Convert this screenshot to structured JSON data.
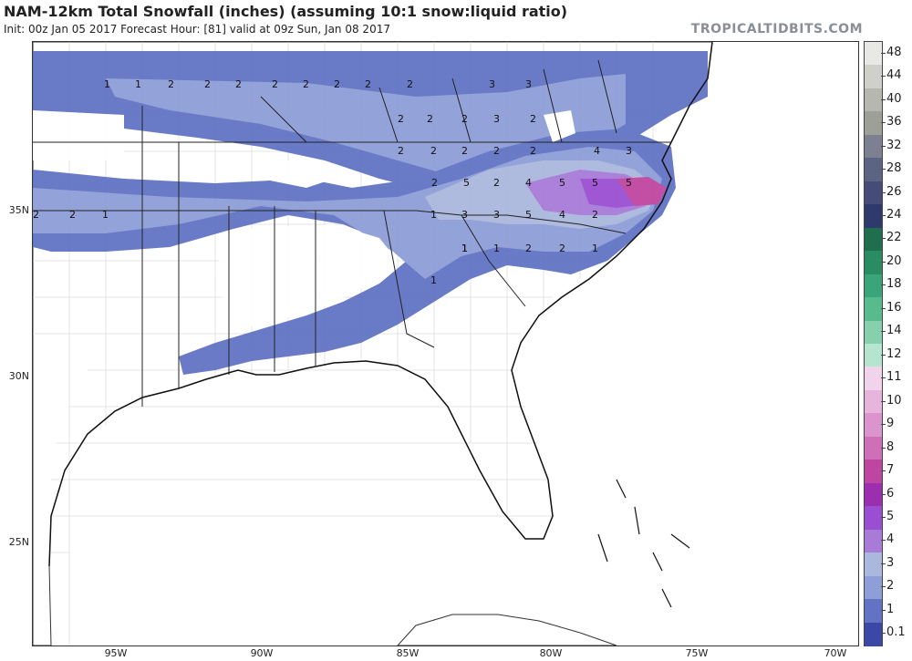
{
  "header": {
    "title": "NAM-12km Total Snowfall (inches) (assuming 10:1 snow:liquid ratio)",
    "subtitle": "Init: 00z Jan 05 2017   Forecast Hour: [81]   valid at 09z Sun, Jan 08 2017",
    "credit": "TROPICALTIDBITS.COM"
  },
  "axes": {
    "lat_labels": [
      "35N",
      "30N",
      "25N"
    ],
    "lon_labels": [
      "95W",
      "90W",
      "85W",
      "80W",
      "75W",
      "70W"
    ]
  },
  "colorbar": {
    "labels": [
      "48",
      "44",
      "40",
      "36",
      "32",
      "28",
      "26",
      "24",
      "22",
      "20",
      "18",
      "16",
      "14",
      "12",
      "11",
      "10",
      "9",
      "8",
      "7",
      "6",
      "5",
      "4",
      "3",
      "2",
      "1",
      "0.1"
    ],
    "colors": [
      "#e8e8e4",
      "#cfd0ca",
      "#b6b8b0",
      "#9da096",
      "#7c8090",
      "#5c6483",
      "#454c78",
      "#2f3a6c",
      "#1f6e4e",
      "#2a8c62",
      "#3aa578",
      "#57bb8e",
      "#86d0ad",
      "#b5e4cf",
      "#f2d3ec",
      "#e7b4dc",
      "#dc94cc",
      "#cf6fb8",
      "#bf46a0",
      "#9a2fb0",
      "#9a4fd1",
      "#a87bd9",
      "#aab8de",
      "#8e9ed6",
      "#6273c4",
      "#3c48a6"
    ]
  },
  "map": {
    "value_labels": [
      "1",
      "1",
      "2",
      "2",
      "2",
      "2",
      "2",
      "2",
      "2",
      "2",
      "3",
      "3",
      "2",
      "2",
      "2",
      "3",
      "2",
      "2",
      "2",
      "2",
      "2",
      "2",
      "4",
      "3",
      "2",
      "5",
      "2",
      "4",
      "5",
      "5",
      "5",
      "2",
      "2",
      "1",
      "1",
      "3",
      "3",
      "5",
      "4",
      "2",
      "1",
      "1",
      "2",
      "2",
      "1",
      "1",
      "1"
    ]
  }
}
